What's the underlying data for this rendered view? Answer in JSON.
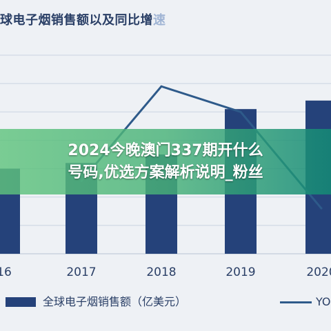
{
  "chart_data": {
    "type": "bar",
    "title": "球电子烟销售额以及同比增",
    "title_suffix": "速",
    "categories": [
      "16",
      "2017",
      "2018",
      "2019",
      "2020"
    ],
    "series": [
      {
        "name": "全球电子烟销售额（亿美元）",
        "type": "bar",
        "values": [
          150,
          160,
          175,
          255,
          270
        ]
      },
      {
        "name": "YO",
        "type": "line",
        "values": [
          null,
          128,
          295,
          250,
          80
        ]
      }
    ],
    "ylim": [
      0,
      350
    ],
    "grid": true,
    "legend_position": "bottom"
  },
  "overlay": {
    "line1": "2024今晚澳门337期开什么",
    "line2": "号码,优选方案解析说明_粉丝"
  },
  "colors": {
    "bar": "#25427a",
    "line": "#2e5a8a",
    "grid": "#c9d3e1",
    "axis_text": "#2a3f66"
  }
}
